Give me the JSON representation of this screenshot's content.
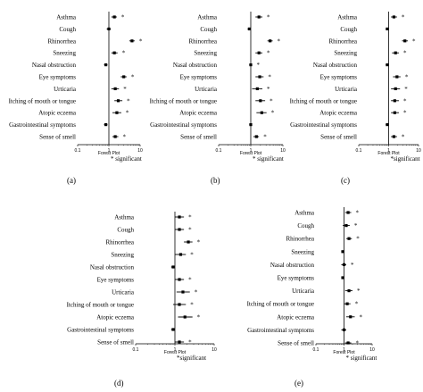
{
  "chart_data": [
    {
      "type": "forest",
      "letter": "(a)",
      "xlabel": "Forest Plot",
      "note": "* significant",
      "x_scale": "log",
      "xlim": [
        0.1,
        10
      ],
      "xticks": [
        "0.1",
        "1",
        "10"
      ],
      "categories": [
        "Asthma",
        "Cough",
        "Rhinorrhea",
        "Sneezing",
        "Nasal obstruction",
        "Eye symptoms",
        "Urticaria",
        "Itching of mouth or tongue",
        "Atopic eczema",
        "Gastrointestinal symptoms",
        "Sense of smell"
      ],
      "estimates": [
        1.5,
        1.0,
        5.5,
        1.5,
        0.8,
        3.0,
        1.6,
        2.0,
        1.8,
        0.8,
        1.6
      ],
      "lower": [
        1.2,
        0.85,
        4.5,
        1.2,
        0.7,
        2.4,
        1.2,
        1.5,
        1.3,
        0.7,
        1.3
      ],
      "upper": [
        1.8,
        1.15,
        6.7,
        1.9,
        0.9,
        3.7,
        2.1,
        2.7,
        2.5,
        0.9,
        2.0
      ],
      "significant": [
        true,
        false,
        true,
        true,
        false,
        true,
        true,
        true,
        true,
        false,
        true
      ]
    },
    {
      "type": "forest",
      "letter": "(b)",
      "xlabel": "Forest Plot",
      "note": "* significant",
      "x_scale": "log",
      "xlim": [
        0.1,
        10
      ],
      "xticks": [
        "0.1",
        "1",
        "10"
      ],
      "categories": [
        "Asthma",
        "Cough",
        "Rhinorrhea",
        "Sneezing",
        "Nasal obstruction",
        "Eye symptoms",
        "Urticaria",
        "Itching of mouth or tongue",
        "Atopic eczema",
        "Gastrointestinal symptoms",
        "Sense of smell"
      ],
      "estimates": [
        1.8,
        0.9,
        4.0,
        1.8,
        1.0,
        1.9,
        1.6,
        2.0,
        2.2,
        1.0,
        1.5
      ],
      "lower": [
        1.4,
        0.8,
        3.3,
        1.4,
        0.9,
        1.4,
        1.1,
        1.4,
        1.5,
        0.9,
        1.2
      ],
      "upper": [
        2.3,
        1.0,
        4.8,
        2.3,
        1.1,
        2.5,
        2.3,
        2.8,
        3.1,
        1.1,
        1.8
      ],
      "significant": [
        true,
        false,
        true,
        true,
        true,
        true,
        true,
        true,
        true,
        false,
        true
      ]
    },
    {
      "type": "forest",
      "letter": "(c)",
      "xlabel": "Forest Plot",
      "note": "*significant",
      "x_scale": "log",
      "xlim": [
        0.1,
        10
      ],
      "xticks": [
        "0.1",
        "1",
        "10"
      ],
      "categories": [
        "Asthma",
        "Cough",
        "Rhinorrhea",
        "Sneezing",
        "Nasal obstruction",
        "Eye symptoms",
        "Urticaria",
        "Itching of mouth or tongue",
        "Atopic eczema",
        "Gastrointestinal symptoms",
        "Sense of smell"
      ],
      "estimates": [
        1.5,
        0.9,
        3.5,
        1.7,
        0.9,
        1.9,
        1.7,
        1.6,
        1.6,
        0.9,
        1.5
      ],
      "lower": [
        1.2,
        0.8,
        2.8,
        1.3,
        0.8,
        1.4,
        1.2,
        1.2,
        1.2,
        0.8,
        1.2
      ],
      "upper": [
        1.9,
        1.0,
        4.4,
        2.2,
        1.0,
        2.5,
        2.4,
        2.2,
        2.2,
        1.0,
        1.9
      ],
      "significant": [
        true,
        false,
        true,
        true,
        false,
        true,
        true,
        true,
        true,
        false,
        true
      ]
    },
    {
      "type": "forest",
      "letter": "(d)",
      "xlabel": "Forest Plot",
      "note": "*significant",
      "x_scale": "log",
      "xlim": [
        0.1,
        10
      ],
      "xticks": [
        "0.1",
        "1",
        "10"
      ],
      "categories": [
        "Asthma",
        "Cough",
        "Rhinorrhea",
        "Sneezing",
        "Nasal obstruction",
        "Eye symptoms",
        "Urticaria",
        "Itching of mouth or tongue",
        "Atopic eczema",
        "Gastrointestinal symptoms",
        "Sense of smell"
      ],
      "estimates": [
        1.3,
        1.3,
        2.2,
        1.4,
        0.9,
        1.3,
        1.6,
        1.3,
        1.8,
        0.9,
        1.3
      ],
      "lower": [
        1.0,
        1.0,
        1.7,
        1.0,
        0.8,
        1.0,
        1.1,
        0.9,
        1.2,
        0.8,
        1.0
      ],
      "upper": [
        1.7,
        1.7,
        2.8,
        1.9,
        1.0,
        1.7,
        2.4,
        1.9,
        2.8,
        1.0,
        1.7
      ],
      "significant": [
        true,
        true,
        true,
        true,
        false,
        true,
        true,
        true,
        true,
        false,
        true
      ]
    },
    {
      "type": "forest",
      "letter": "(e)",
      "xlabel": "Forest Plot",
      "note": "* significant",
      "x_scale": "log",
      "xlim": [
        0.1,
        10
      ],
      "xticks": [
        "0.1",
        "1",
        "10"
      ],
      "categories": [
        "Asthma",
        "Cough",
        "Rhinorrhea",
        "Sneezing",
        "Nasal obstruction",
        "Eye symptoms",
        "Urticaria",
        "Itching of mouth or tongue",
        "Atopic eczema",
        "Gastrointestinal symptoms",
        "Sense of smell"
      ],
      "estimates": [
        1.4,
        1.2,
        1.5,
        0.9,
        1.0,
        0.9,
        1.5,
        1.3,
        1.7,
        1.0,
        1.4
      ],
      "lower": [
        1.1,
        0.9,
        1.2,
        0.8,
        0.8,
        0.8,
        1.1,
        1.0,
        1.2,
        0.8,
        1.1
      ],
      "upper": [
        1.8,
        1.6,
        1.9,
        1.0,
        1.2,
        1.0,
        2.0,
        1.7,
        2.4,
        1.2,
        1.8
      ],
      "significant": [
        true,
        true,
        true,
        false,
        true,
        false,
        true,
        true,
        true,
        false,
        true
      ]
    }
  ]
}
